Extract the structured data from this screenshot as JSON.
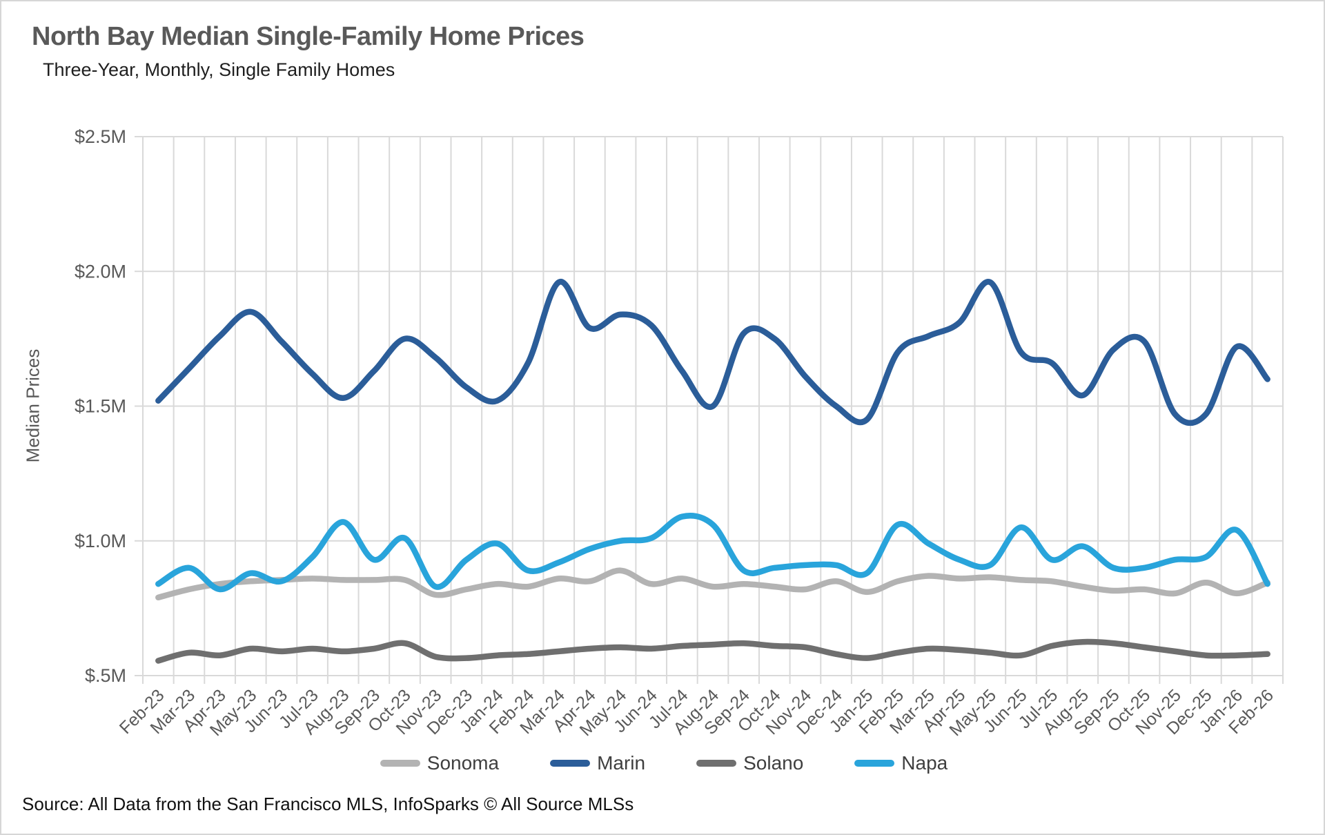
{
  "header": {
    "title": "North Bay Median Single-Family Home Prices",
    "subtitle": "Three-Year, Monthly, Single Family Homes"
  },
  "footer": {
    "source": "Source: All Data from the San Francisco MLS, InfoSparks © All Source MLSs"
  },
  "colors": {
    "grid": "#d9d9d9",
    "axis_text": "#595959",
    "title_text": "#595959",
    "legend_text": "#3f3f3f"
  },
  "chart_data": {
    "type": "line",
    "title": "North Bay Median Single-Family Home Prices",
    "subtitle": "Three-Year, Monthly, Single Family Homes",
    "xlabel": "",
    "ylabel": "Median Prices",
    "ylim": [
      0.5,
      2.5
    ],
    "grid": true,
    "legend_position": "bottom",
    "ytick_values": [
      0.5,
      1.0,
      1.5,
      2.0,
      2.5
    ],
    "ytick_labels": [
      "$.5M",
      "$1.0M",
      "$1.5M",
      "$2.0M",
      "$2.5M"
    ],
    "categories": [
      "Feb-23",
      "Mar-23",
      "Apr-23",
      "May-23",
      "Jun-23",
      "Jul-23",
      "Aug-23",
      "Sep-23",
      "Oct-23",
      "Nov-23",
      "Dec-23",
      "Jan-24",
      "Feb-24",
      "Mar-24",
      "Apr-24",
      "May-24",
      "Jun-24",
      "Jul-24",
      "Aug-24",
      "Sep-24",
      "Oct-24",
      "Nov-24",
      "Dec-24",
      "Jan-25",
      "Feb-25",
      "Mar-25",
      "Apr-25",
      "May-25",
      "Jun-25",
      "Jul-25",
      "Aug-25",
      "Sep-25",
      "Oct-25",
      "Nov-25",
      "Dec-25",
      "Jan-26",
      "Feb-26"
    ],
    "units": "millions USD",
    "series": [
      {
        "name": "Sonoma",
        "color": "#b3b3b3",
        "values": [
          0.79,
          0.82,
          0.84,
          0.85,
          0.855,
          0.86,
          0.855,
          0.855,
          0.855,
          0.8,
          0.82,
          0.84,
          0.83,
          0.86,
          0.85,
          0.89,
          0.84,
          0.86,
          0.83,
          0.84,
          0.83,
          0.82,
          0.85,
          0.81,
          0.85,
          0.87,
          0.86,
          0.865,
          0.855,
          0.85,
          0.83,
          0.815,
          0.82,
          0.805,
          0.845,
          0.805,
          0.845
        ]
      },
      {
        "name": "Marin",
        "color": "#2b5d99",
        "values": [
          1.52,
          1.64,
          1.76,
          1.85,
          1.74,
          1.62,
          1.53,
          1.63,
          1.75,
          1.68,
          1.57,
          1.52,
          1.66,
          1.96,
          1.79,
          1.84,
          1.8,
          1.63,
          1.5,
          1.77,
          1.75,
          1.61,
          1.5,
          1.45,
          1.7,
          1.76,
          1.81,
          1.96,
          1.7,
          1.66,
          1.54,
          1.71,
          1.74,
          1.47,
          1.47,
          1.72,
          1.6
        ]
      },
      {
        "name": "Solano",
        "color": "#6f6f6f",
        "values": [
          0.555,
          0.585,
          0.575,
          0.6,
          0.59,
          0.6,
          0.59,
          0.6,
          0.62,
          0.57,
          0.565,
          0.575,
          0.58,
          0.59,
          0.6,
          0.605,
          0.6,
          0.61,
          0.615,
          0.62,
          0.61,
          0.605,
          0.58,
          0.565,
          0.585,
          0.6,
          0.595,
          0.585,
          0.575,
          0.61,
          0.625,
          0.62,
          0.605,
          0.59,
          0.575,
          0.575,
          0.58
        ]
      },
      {
        "name": "Napa",
        "color": "#29a4db",
        "values": [
          0.84,
          0.9,
          0.82,
          0.88,
          0.85,
          0.94,
          1.07,
          0.93,
          1.01,
          0.83,
          0.93,
          0.99,
          0.89,
          0.92,
          0.97,
          1.0,
          1.01,
          1.09,
          1.06,
          0.89,
          0.9,
          0.91,
          0.91,
          0.88,
          1.06,
          0.99,
          0.93,
          0.91,
          1.05,
          0.93,
          0.98,
          0.9,
          0.9,
          0.93,
          0.94,
          1.04,
          0.84
        ]
      }
    ]
  }
}
